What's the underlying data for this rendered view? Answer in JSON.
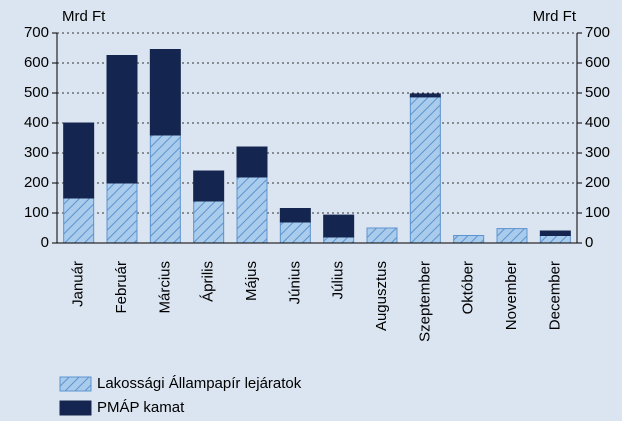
{
  "chart_data": {
    "type": "stacked_bar",
    "ylabel": "Mrd Ft",
    "y2label": "Mrd Ft",
    "categories": [
      "Január",
      "Február",
      "Március",
      "Április",
      "Május",
      "Június",
      "Július",
      "Augusztus",
      "Szeptember",
      "Október",
      "November",
      "December"
    ],
    "series": [
      {
        "name": "Lakossági Állampapír lejáratok",
        "color": "#a9cbec",
        "hatch": true,
        "values": [
          150,
          200,
          360,
          140,
          220,
          70,
          20,
          50,
          487,
          25,
          48,
          25
        ]
      },
      {
        "name": "PMÁP kamat",
        "color": "#14264f",
        "hatch": false,
        "values": [
          250,
          425,
          285,
          100,
          100,
          45,
          73,
          0,
          10,
          0,
          0,
          15
        ]
      }
    ],
    "ylim": [
      0,
      700
    ],
    "yticks": [
      0,
      100,
      200,
      300,
      400,
      500,
      600,
      700
    ],
    "y2lim": [
      0,
      700
    ],
    "y2ticks": [
      0,
      100,
      200,
      300,
      400,
      500,
      600,
      700
    ],
    "grid": true
  }
}
